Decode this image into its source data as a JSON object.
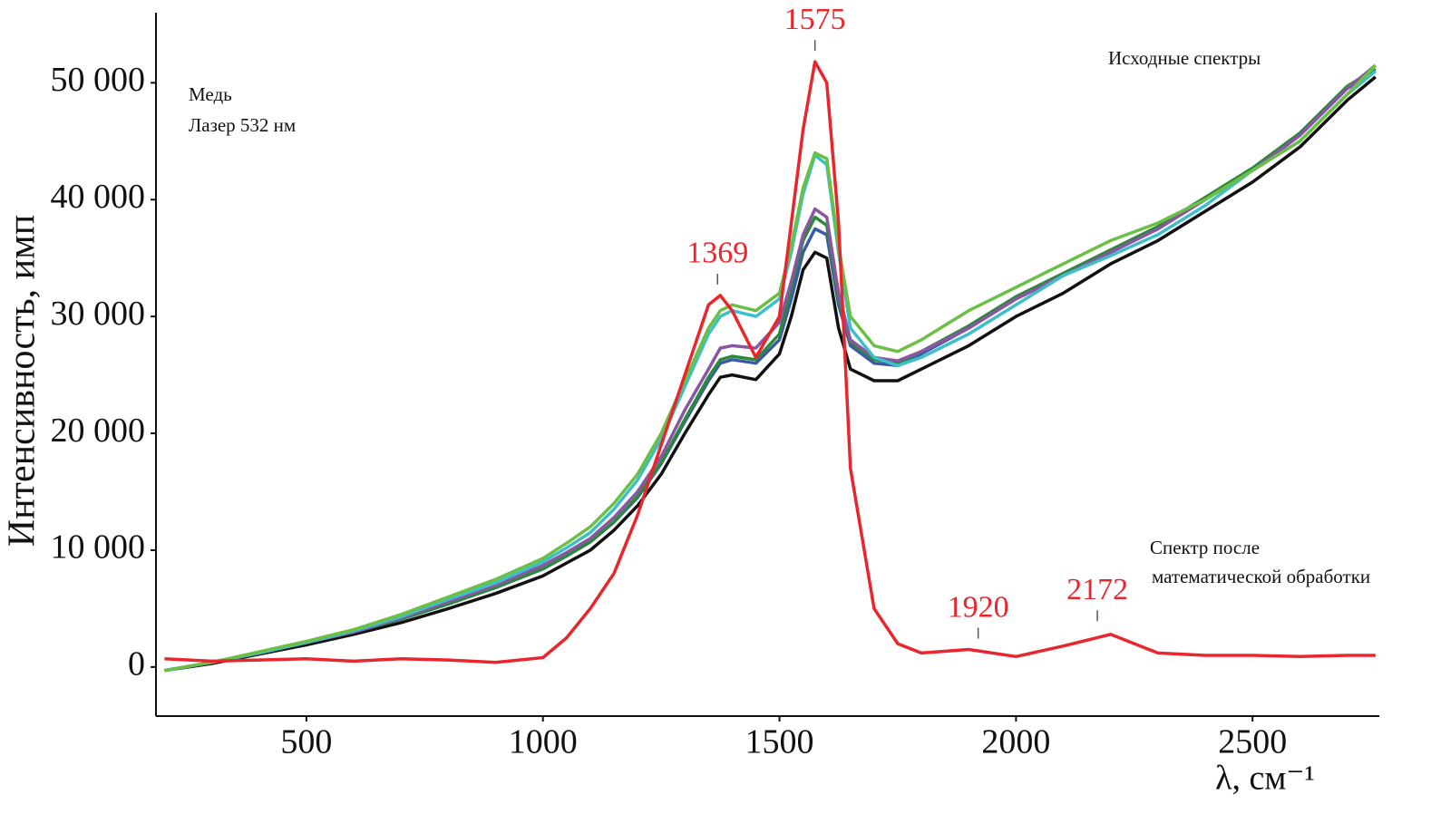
{
  "chart_data": {
    "type": "line",
    "y_label": "Интенсивность, имп",
    "x_label": "λ, см⁻¹",
    "annotations": [
      "Медь",
      "Лазер 532 нм",
      "Исходные спектры",
      "Спектр после",
      "математической обработки"
    ],
    "peaks": [
      {
        "x": 1369,
        "y": 31800
      },
      {
        "x": 1575,
        "y": 51800
      },
      {
        "x": 1920,
        "y": 1500
      },
      {
        "x": 2172,
        "y": 3000
      }
    ],
    "peak_color": "#e8262d",
    "xlim": [
      182,
      2768
    ],
    "xticks": [
      500,
      1000,
      1500,
      2000,
      2500
    ],
    "ylim": [
      -4200,
      56000
    ],
    "yticks": [
      0,
      {
        "value": 10000,
        "label": "10 000"
      },
      {
        "value": 20000,
        "label": "20 000"
      },
      {
        "value": 30000,
        "label": "30 000"
      },
      {
        "value": 40000,
        "label": "40 000"
      },
      {
        "value": 50000,
        "label": "50 000"
      }
    ],
    "x": [
      200,
      300,
      400,
      500,
      600,
      700,
      800,
      900,
      1000,
      1050,
      1100,
      1150,
      1200,
      1250,
      1300,
      1350,
      1375,
      1400,
      1450,
      1500,
      1525,
      1550,
      1575,
      1600,
      1625,
      1650,
      1700,
      1750,
      1800,
      1900,
      2000,
      2100,
      2200,
      2300,
      2400,
      2500,
      2600,
      2700,
      2760
    ],
    "series": [
      {
        "color": "#111111",
        "values": [
          -300,
          300,
          1100,
          1900,
          2800,
          3800,
          5000,
          6300,
          7800,
          8900,
          10000,
          11700,
          13800,
          16500,
          20000,
          23300,
          24800,
          25000,
          24600,
          26800,
          30000,
          34000,
          35500,
          35000,
          29000,
          25500,
          24500,
          24500,
          25500,
          27500,
          30000,
          32000,
          34500,
          36500,
          39000,
          41500,
          44500,
          48500,
          50500
        ]
      },
      {
        "color": "#3a5aa8",
        "values": [
          -300,
          400,
          1200,
          2100,
          3000,
          4100,
          5400,
          6800,
          8400,
          9500,
          10700,
          12400,
          14500,
          17400,
          21000,
          24500,
          26000,
          26300,
          26000,
          28000,
          31500,
          35500,
          37500,
          37000,
          31000,
          27500,
          26000,
          25800,
          26800,
          29000,
          31500,
          33500,
          35500,
          37500,
          40000,
          42500,
          45500,
          49500,
          51000
        ]
      },
      {
        "color": "#2a8a3a",
        "values": [
          -300,
          400,
          1200,
          2100,
          3000,
          4100,
          5400,
          6800,
          8400,
          9500,
          10700,
          12400,
          14600,
          17500,
          21200,
          24800,
          26300,
          26600,
          26300,
          28500,
          32500,
          36500,
          38500,
          37800,
          31500,
          27800,
          26300,
          26000,
          27000,
          29200,
          31700,
          33700,
          35700,
          37700,
          40200,
          42700,
          45700,
          49700,
          51200
        ]
      },
      {
        "color": "#8a55a3",
        "values": [
          -300,
          400,
          1200,
          2100,
          3000,
          4200,
          5600,
          7000,
          8700,
          9800,
          11000,
          12800,
          15000,
          18000,
          22000,
          25500,
          27300,
          27500,
          27300,
          29500,
          33000,
          37000,
          39200,
          38500,
          32000,
          28000,
          26500,
          26200,
          27000,
          29000,
          31500,
          33500,
          35500,
          37500,
          40000,
          42500,
          45500,
          49500,
          51500
        ]
      },
      {
        "color": "#3dbfc8",
        "values": [
          -300,
          400,
          1200,
          2100,
          3100,
          4300,
          5800,
          7200,
          9000,
          10200,
          11500,
          13500,
          16000,
          19500,
          24000,
          28500,
          30000,
          30500,
          30000,
          31500,
          35500,
          40500,
          43800,
          43000,
          35500,
          29000,
          26500,
          25800,
          26500,
          28500,
          31000,
          33500,
          35200,
          37000,
          39500,
          42500,
          45000,
          49000,
          51000
        ]
      },
      {
        "color": "#6cbf45",
        "values": [
          -300,
          400,
          1300,
          2200,
          3200,
          4500,
          6000,
          7500,
          9300,
          10600,
          12000,
          14000,
          16500,
          20000,
          24500,
          29000,
          30500,
          31000,
          30500,
          32000,
          36000,
          41000,
          44000,
          43500,
          36000,
          30000,
          27500,
          27000,
          28000,
          30500,
          32500,
          34500,
          36500,
          38000,
          40000,
          42500,
          45000,
          49000,
          51500
        ]
      },
      {
        "color": "#e8262d",
        "values": [
          700,
          500,
          600,
          700,
          500,
          700,
          600,
          400,
          800,
          2500,
          5000,
          8000,
          13000,
          19000,
          25000,
          31000,
          31800,
          30500,
          26500,
          30000,
          38000,
          46000,
          51800,
          50000,
          38000,
          17000,
          5000,
          2000,
          1200,
          1500,
          900,
          1800,
          2800,
          1200,
          1000,
          1000,
          900,
          1000,
          1000
        ]
      }
    ]
  }
}
